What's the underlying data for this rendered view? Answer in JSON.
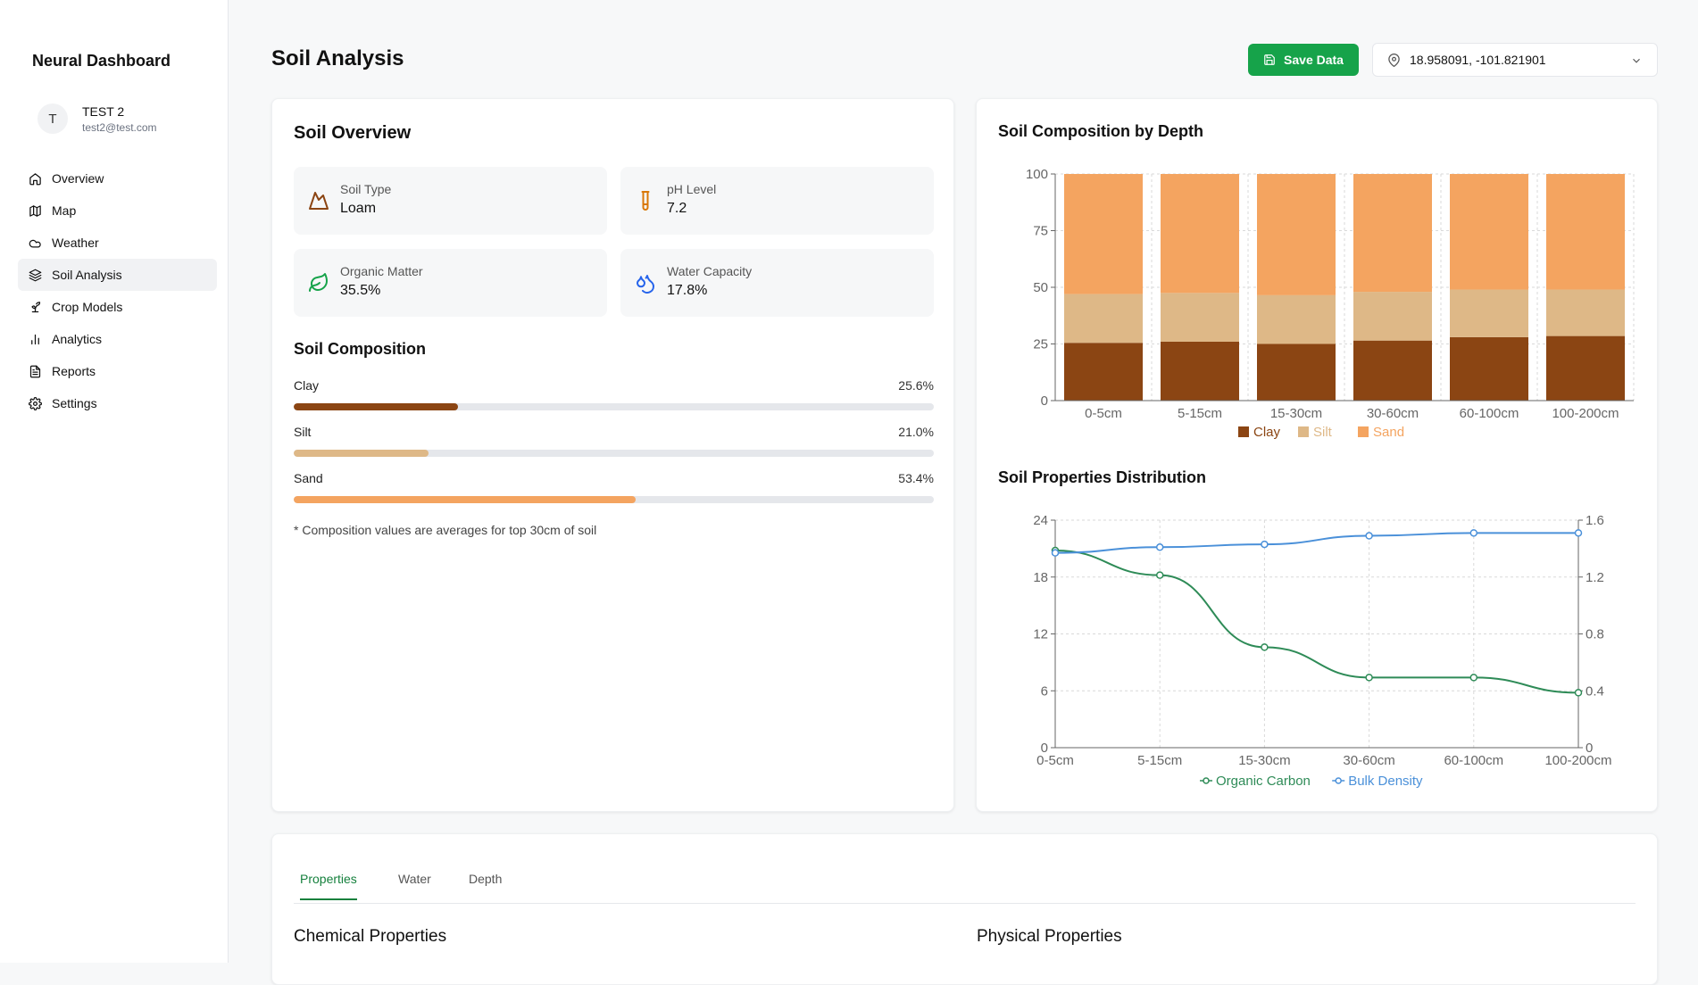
{
  "app": {
    "brand": "Neural Dashboard"
  },
  "user": {
    "initial": "T",
    "name": "TEST 2",
    "email": "test2@test.com"
  },
  "nav": [
    {
      "label": "Overview",
      "icon": "home-icon"
    },
    {
      "label": "Map",
      "icon": "map-icon"
    },
    {
      "label": "Weather",
      "icon": "cloud-icon"
    },
    {
      "label": "Soil Analysis",
      "icon": "layers-icon",
      "active": true
    },
    {
      "label": "Crop Models",
      "icon": "sprout-icon"
    },
    {
      "label": "Analytics",
      "icon": "bar-chart-icon"
    },
    {
      "label": "Reports",
      "icon": "file-text-icon"
    },
    {
      "label": "Settings",
      "icon": "gear-icon"
    }
  ],
  "header": {
    "title": "Soil Analysis",
    "save_label": "Save Data",
    "location": "18.958091, -101.821901"
  },
  "overview": {
    "title": "Soil Overview",
    "stats": [
      {
        "label": "Soil Type",
        "value": "Loam",
        "icon": "mountain-icon",
        "color": "#8b4513"
      },
      {
        "label": "pH Level",
        "value": "7.2",
        "icon": "test-tube-icon",
        "color": "#d97706"
      },
      {
        "label": "Organic Matter",
        "value": "35.5%",
        "icon": "leaf-icon",
        "color": "#16a34a"
      },
      {
        "label": "Water Capacity",
        "value": "17.8%",
        "icon": "droplets-icon",
        "color": "#2563eb"
      }
    ],
    "composition_title": "Soil Composition",
    "composition": [
      {
        "label": "Clay",
        "value": 25.6,
        "display": "25.6%",
        "color": "#8b4513"
      },
      {
        "label": "Silt",
        "value": 21.0,
        "display": "21.0%",
        "color": "#deb887"
      },
      {
        "label": "Sand",
        "value": 53.4,
        "display": "53.4%",
        "color": "#f4a460"
      }
    ],
    "note": "* Composition values are averages for top 30cm of soil"
  },
  "chart_data": [
    {
      "type": "bar",
      "stacked": true,
      "title": "Soil Composition by Depth",
      "categories": [
        "0-5cm",
        "5-15cm",
        "15-30cm",
        "30-60cm",
        "60-100cm",
        "100-200cm"
      ],
      "series": [
        {
          "name": "Clay",
          "color": "#8b4513",
          "values": [
            25.5,
            26,
            25,
            26.5,
            28,
            28.5
          ]
        },
        {
          "name": "Silt",
          "color": "#deb887",
          "values": [
            21.5,
            21.5,
            21.5,
            21.5,
            21,
            20.5
          ]
        },
        {
          "name": "Sand",
          "color": "#f4a460",
          "values": [
            53,
            52.5,
            53.5,
            52,
            51,
            51
          ]
        }
      ],
      "ylim": [
        0,
        100
      ],
      "yticks": [
        0,
        25,
        50,
        75,
        100
      ],
      "legend": "bottom"
    },
    {
      "type": "line",
      "title": "Soil Properties Distribution",
      "categories": [
        "0-5cm",
        "5-15cm",
        "15-30cm",
        "30-60cm",
        "60-100cm",
        "100-200cm"
      ],
      "series": [
        {
          "name": "Organic Carbon",
          "color": "#2e8b57",
          "axis": "left",
          "values": [
            20.8,
            18.2,
            10.6,
            7.4,
            7.4,
            5.8
          ]
        },
        {
          "name": "Bulk Density",
          "color": "#4a90d9",
          "axis": "right",
          "values": [
            1.37,
            1.41,
            1.43,
            1.49,
            1.51,
            1.51
          ]
        }
      ],
      "ylim_left": [
        0,
        24
      ],
      "yticks_left": [
        "0",
        "6",
        "12",
        "18",
        "24"
      ],
      "ylim_right": [
        0,
        1.6
      ],
      "yticks_right": [
        "0",
        "0.4",
        "0.8",
        "1.2",
        "1.6"
      ],
      "legend": "bottom"
    }
  ],
  "tabs": [
    {
      "label": "Properties",
      "active": true
    },
    {
      "label": "Water"
    },
    {
      "label": "Depth"
    }
  ],
  "sections": {
    "chemical": "Chemical Properties",
    "physical": "Physical Properties"
  }
}
